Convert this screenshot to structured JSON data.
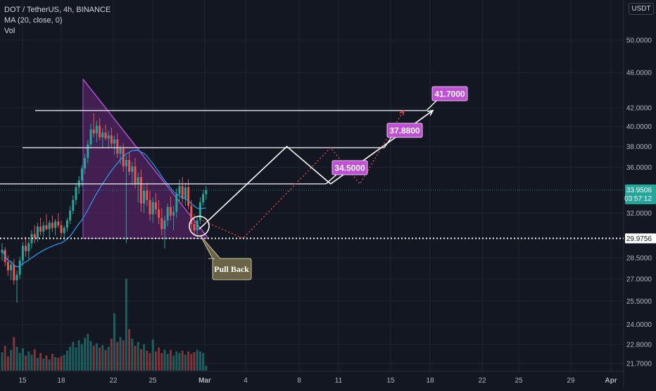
{
  "header": {
    "title": "DOT / TetherUS, 4h, BINANCE",
    "indicator": "MA (20, close, 0)",
    "volume": "Vol",
    "currency": "USDT"
  },
  "colors": {
    "background": "#131722",
    "grid": "#1f2430",
    "candle_up": "#26a69a",
    "candle_down": "#ef5350",
    "ma_line": "#2a9df4",
    "triangle_fill": "#7b2a8c",
    "triangle_edge": "#b04fcf",
    "target_label": "#c04fd6",
    "callout": "#6b6446",
    "level_line": "#d1d4dc"
  },
  "chart_data": {
    "type": "candlestick",
    "symbol": "DOT / TetherUS",
    "timeframe": "4h",
    "exchange": "BINANCE",
    "x_ticks": [
      "15",
      "18",
      "22",
      "25",
      "Mar",
      "4",
      "8",
      "11",
      "15",
      "18",
      "22",
      "25",
      "29",
      "Apr"
    ],
    "y_ticks": [
      "50.0000",
      "46.0000",
      "42.0000",
      "40.0000",
      "38.0000",
      "36.0000",
      "32.0000",
      "28.5000",
      "27.0000",
      "25.5000",
      "24.0000",
      "22.8000",
      "21.7000"
    ],
    "y_scale": "log",
    "current_price": "33.9506",
    "countdown": "03:57:12",
    "support_level": "29.9756",
    "targets": [
      "34.5000",
      "37.8800",
      "41.7000"
    ],
    "annotation": "Pull Back",
    "candles": [
      {
        "o": 28.9,
        "h": 29.6,
        "l": 28.3,
        "c": 29.1
      },
      {
        "o": 29.1,
        "h": 29.3,
        "l": 27.9,
        "c": 28.2
      },
      {
        "o": 28.2,
        "h": 28.7,
        "l": 27.2,
        "c": 27.6
      },
      {
        "o": 27.6,
        "h": 28.3,
        "l": 26.9,
        "c": 28.0
      },
      {
        "o": 28.0,
        "h": 28.4,
        "l": 26.6,
        "c": 26.9
      },
      {
        "o": 26.9,
        "h": 27.6,
        "l": 25.4,
        "c": 27.3
      },
      {
        "o": 27.3,
        "h": 28.6,
        "l": 27.0,
        "c": 28.3
      },
      {
        "o": 28.3,
        "h": 29.7,
        "l": 27.9,
        "c": 29.4
      },
      {
        "o": 29.4,
        "h": 30.1,
        "l": 28.6,
        "c": 29.0
      },
      {
        "o": 29.0,
        "h": 29.8,
        "l": 28.4,
        "c": 29.6
      },
      {
        "o": 29.6,
        "h": 30.6,
        "l": 29.2,
        "c": 30.3
      },
      {
        "o": 30.3,
        "h": 31.0,
        "l": 29.6,
        "c": 30.0
      },
      {
        "o": 30.0,
        "h": 31.2,
        "l": 29.7,
        "c": 30.9
      },
      {
        "o": 30.9,
        "h": 31.6,
        "l": 30.2,
        "c": 30.5
      },
      {
        "o": 30.5,
        "h": 31.3,
        "l": 30.1,
        "c": 31.0
      },
      {
        "o": 31.0,
        "h": 31.9,
        "l": 30.6,
        "c": 30.7
      },
      {
        "o": 30.7,
        "h": 31.4,
        "l": 30.0,
        "c": 31.2
      },
      {
        "o": 31.2,
        "h": 31.8,
        "l": 30.5,
        "c": 30.8
      },
      {
        "o": 30.8,
        "h": 31.5,
        "l": 30.2,
        "c": 31.3
      },
      {
        "o": 31.3,
        "h": 32.0,
        "l": 30.8,
        "c": 31.0
      },
      {
        "o": 31.0,
        "h": 31.4,
        "l": 30.1,
        "c": 30.4
      },
      {
        "o": 30.4,
        "h": 31.0,
        "l": 29.9,
        "c": 30.8
      },
      {
        "o": 30.8,
        "h": 31.6,
        "l": 30.5,
        "c": 31.4
      },
      {
        "o": 31.4,
        "h": 32.6,
        "l": 31.1,
        "c": 32.2
      },
      {
        "o": 32.2,
        "h": 33.5,
        "l": 31.9,
        "c": 33.1
      },
      {
        "o": 33.1,
        "h": 34.6,
        "l": 32.7,
        "c": 34.2
      },
      {
        "o": 34.2,
        "h": 35.2,
        "l": 33.6,
        "c": 34.8
      },
      {
        "o": 34.8,
        "h": 36.2,
        "l": 34.3,
        "c": 35.9
      },
      {
        "o": 35.9,
        "h": 37.3,
        "l": 35.4,
        "c": 36.9
      },
      {
        "o": 36.9,
        "h": 38.6,
        "l": 36.4,
        "c": 38.2
      },
      {
        "o": 38.2,
        "h": 40.3,
        "l": 37.8,
        "c": 39.7
      },
      {
        "o": 39.7,
        "h": 41.4,
        "l": 38.9,
        "c": 39.3
      },
      {
        "o": 39.3,
        "h": 40.6,
        "l": 38.4,
        "c": 40.1
      },
      {
        "o": 40.1,
        "h": 40.9,
        "l": 38.6,
        "c": 38.9
      },
      {
        "o": 38.9,
        "h": 39.8,
        "l": 37.9,
        "c": 39.4
      },
      {
        "o": 39.4,
        "h": 40.2,
        "l": 38.6,
        "c": 38.8
      },
      {
        "o": 38.8,
        "h": 39.6,
        "l": 37.8,
        "c": 39.1
      },
      {
        "o": 39.1,
        "h": 39.9,
        "l": 37.9,
        "c": 38.3
      },
      {
        "o": 38.3,
        "h": 39.1,
        "l": 37.2,
        "c": 38.7
      },
      {
        "o": 38.7,
        "h": 39.3,
        "l": 36.9,
        "c": 37.3
      },
      {
        "o": 37.3,
        "h": 38.1,
        "l": 36.3,
        "c": 37.8
      },
      {
        "o": 37.8,
        "h": 38.3,
        "l": 35.6,
        "c": 36.1
      },
      {
        "o": 36.1,
        "h": 37.1,
        "l": 29.6,
        "c": 36.7
      },
      {
        "o": 36.7,
        "h": 37.4,
        "l": 35.3,
        "c": 35.6
      },
      {
        "o": 35.6,
        "h": 36.5,
        "l": 34.4,
        "c": 36.1
      },
      {
        "o": 36.1,
        "h": 36.9,
        "l": 34.1,
        "c": 34.5
      },
      {
        "o": 34.5,
        "h": 35.5,
        "l": 32.9,
        "c": 35.1
      },
      {
        "o": 35.1,
        "h": 35.8,
        "l": 32.1,
        "c": 32.8
      },
      {
        "o": 32.8,
        "h": 34.4,
        "l": 32.0,
        "c": 33.9
      },
      {
        "o": 33.9,
        "h": 34.6,
        "l": 32.6,
        "c": 33.1
      },
      {
        "o": 33.1,
        "h": 33.9,
        "l": 31.4,
        "c": 31.9
      },
      {
        "o": 31.9,
        "h": 33.3,
        "l": 31.2,
        "c": 32.9
      },
      {
        "o": 32.9,
        "h": 33.7,
        "l": 31.9,
        "c": 32.3
      },
      {
        "o": 32.3,
        "h": 33.1,
        "l": 31.1,
        "c": 31.6
      },
      {
        "o": 31.6,
        "h": 32.4,
        "l": 30.2,
        "c": 30.7
      },
      {
        "o": 30.7,
        "h": 31.8,
        "l": 29.2,
        "c": 31.4
      },
      {
        "o": 31.4,
        "h": 32.8,
        "l": 30.9,
        "c": 32.5
      },
      {
        "o": 32.5,
        "h": 33.4,
        "l": 31.4,
        "c": 31.8
      },
      {
        "o": 31.8,
        "h": 32.6,
        "l": 30.6,
        "c": 32.1
      },
      {
        "o": 32.1,
        "h": 34.1,
        "l": 31.6,
        "c": 33.6
      },
      {
        "o": 33.6,
        "h": 34.9,
        "l": 32.9,
        "c": 34.3
      },
      {
        "o": 34.3,
        "h": 35.1,
        "l": 32.8,
        "c": 33.2
      },
      {
        "o": 33.2,
        "h": 34.6,
        "l": 32.6,
        "c": 34.2
      },
      {
        "o": 34.2,
        "h": 34.9,
        "l": 32.3,
        "c": 32.6
      },
      {
        "o": 32.6,
        "h": 33.1,
        "l": 30.6,
        "c": 31.1
      },
      {
        "o": 31.1,
        "h": 31.9,
        "l": 30.2,
        "c": 30.6
      },
      {
        "o": 30.6,
        "h": 31.7,
        "l": 30.1,
        "c": 31.4
      },
      {
        "o": 31.4,
        "h": 33.3,
        "l": 31.1,
        "c": 32.9
      },
      {
        "o": 32.9,
        "h": 34.0,
        "l": 32.6,
        "c": 33.6
      },
      {
        "o": 33.6,
        "h": 34.3,
        "l": 33.1,
        "c": 33.95
      }
    ],
    "volumes": [
      2.3,
      3.1,
      1.8,
      2.6,
      4.2,
      3.0,
      2.2,
      2.8,
      1.9,
      2.4,
      2.0,
      2.7,
      1.6,
      2.2,
      1.5,
      1.9,
      1.4,
      2.1,
      1.7,
      1.6,
      1.8,
      2.0,
      2.5,
      3.0,
      3.6,
      2.9,
      3.8,
      3.3,
      4.1,
      4.6,
      3.7,
      3.1,
      3.4,
      2.9,
      3.2,
      2.6,
      3.0,
      4.0,
      7.2,
      3.6,
      4.2,
      3.8,
      11.5,
      5.2,
      4.0,
      3.1,
      3.6,
      2.7,
      3.3,
      2.5,
      2.2,
      3.9,
      2.4,
      2.9,
      2.2,
      2.6,
      2.1,
      2.6,
      1.9,
      2.4,
      2.2,
      2.5,
      2.0,
      2.4,
      2.1,
      2.3,
      2.6,
      2.4,
      2.2,
      0.6
    ],
    "projected_path_solid": [
      [
        0,
        30.7
      ],
      [
        6,
        38.0
      ],
      [
        9,
        34.5
      ],
      [
        16,
        41.7
      ]
    ],
    "projected_path_dotted": [
      [
        0,
        31.5
      ],
      [
        3,
        29.9756
      ],
      [
        9,
        37.88
      ],
      [
        11,
        34.5
      ],
      [
        14,
        41.7
      ]
    ]
  }
}
